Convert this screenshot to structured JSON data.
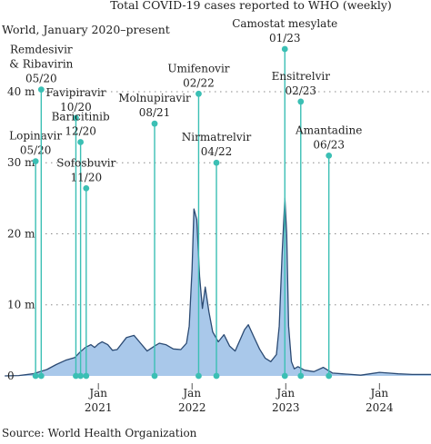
{
  "chart_data": {
    "type": "area",
    "title": "Total COVID-19 cases reported to WHO (weekly)",
    "subtitle": "World, January 2020–present",
    "source": "Source: World Health Organization",
    "y_ticks": [
      {
        "value": 0,
        "label": "0"
      },
      {
        "value": 10,
        "label": "10 m"
      },
      {
        "value": 20,
        "label": "20 m"
      },
      {
        "value": 30,
        "label": "30 m"
      },
      {
        "value": 40,
        "label": "40 m"
      }
    ],
    "x_ticks": [
      {
        "x": 2021.0,
        "label": "Jan\n2021"
      },
      {
        "x": 2022.0,
        "label": "Jan\n2022"
      },
      {
        "x": 2023.0,
        "label": "Jan\n2023"
      },
      {
        "x": 2024.0,
        "label": "Jan\n2024"
      }
    ],
    "xlim": [
      2019.95,
      2024.55
    ],
    "ylim": [
      0,
      46
    ],
    "grid": "horizontal-dotted",
    "colors": {
      "area": "#a9c8ea",
      "line": "#2b4a73",
      "annotation": "#3bbfb4",
      "grid": "#888888"
    },
    "series": [
      {
        "x": [
          2020.0,
          2020.15,
          2020.3,
          2020.45,
          2020.55,
          2020.65,
          2020.75,
          2020.8,
          2020.86,
          2020.92,
          2020.96,
          2021.0,
          2021.04,
          2021.1,
          2021.15,
          2021.2,
          2021.3,
          2021.38,
          2021.45,
          2021.52,
          2021.6,
          2021.65,
          2021.72,
          2021.8,
          2021.88,
          2021.94,
          2021.97,
          2022.0,
          2022.02,
          2022.05,
          2022.08,
          2022.11,
          2022.14,
          2022.18,
          2022.22,
          2022.28,
          2022.34,
          2022.4,
          2022.46,
          2022.52,
          2022.56,
          2022.6,
          2022.66,
          2022.72,
          2022.78,
          2022.84,
          2022.9,
          2022.93,
          2022.96,
          2022.99,
          2023.01,
          2023.03,
          2023.06,
          2023.09,
          2023.13,
          2023.2,
          2023.3,
          2023.4,
          2023.5,
          2023.6,
          2023.7,
          2023.8,
          2023.9,
          2024.0,
          2024.1,
          2024.2,
          2024.35,
          2024.55
        ],
        "y": [
          0,
          0.05,
          0.3,
          0.9,
          1.6,
          2.2,
          2.6,
          3.3,
          4.0,
          4.4,
          4.0,
          4.5,
          4.8,
          4.4,
          3.6,
          3.7,
          5.4,
          5.7,
          4.6,
          3.5,
          4.2,
          4.6,
          4.4,
          3.8,
          3.7,
          4.6,
          7.0,
          15.0,
          23.5,
          22.0,
          14.0,
          9.5,
          12.5,
          9.0,
          6.2,
          4.8,
          5.8,
          4.2,
          3.5,
          5.3,
          6.5,
          7.2,
          5.5,
          3.8,
          2.5,
          2.0,
          3.0,
          7.0,
          17.0,
          25.0,
          20.0,
          7.0,
          2.0,
          1.0,
          1.3,
          0.8,
          0.6,
          1.2,
          0.4,
          0.3,
          0.2,
          0.1,
          0.3,
          0.5,
          0.4,
          0.3,
          0.2,
          0.2
        ]
      }
    ],
    "annotations": [
      {
        "lines": [
          "Lopinavir",
          "05/20"
        ],
        "x": 2020.33,
        "top": 30.2
      },
      {
        "lines": [
          "Remdesivir",
          "& Ribavirin",
          "05/20"
        ],
        "x": 2020.39,
        "top": 40.3
      },
      {
        "lines": [
          "Favipiravir",
          "10/20"
        ],
        "x": 2020.76,
        "top": 36.3
      },
      {
        "lines": [
          "Baricitinib",
          "12/20"
        ],
        "x": 2020.81,
        "top": 32.9
      },
      {
        "lines": [
          "Sofosbuvir",
          "11/20"
        ],
        "x": 2020.87,
        "top": 26.4
      },
      {
        "lines": [
          "Molnupiravir",
          "08/21"
        ],
        "x": 2021.6,
        "top": 35.5
      },
      {
        "lines": [
          "Umifenovir",
          "02/22"
        ],
        "x": 2022.07,
        "top": 39.7
      },
      {
        "lines": [
          "Nirmatrelvir",
          "04/22"
        ],
        "x": 2022.26,
        "top": 30.0
      },
      {
        "lines": [
          "Camostat mesylate",
          "01/23"
        ],
        "x": 2022.99,
        "top": 46.0
      },
      {
        "lines": [
          "Ensitrelvir",
          "02/23"
        ],
        "x": 2023.16,
        "top": 38.6
      },
      {
        "lines": [
          "Amantadine",
          "06/23"
        ],
        "x": 2023.46,
        "top": 31.0
      }
    ]
  }
}
